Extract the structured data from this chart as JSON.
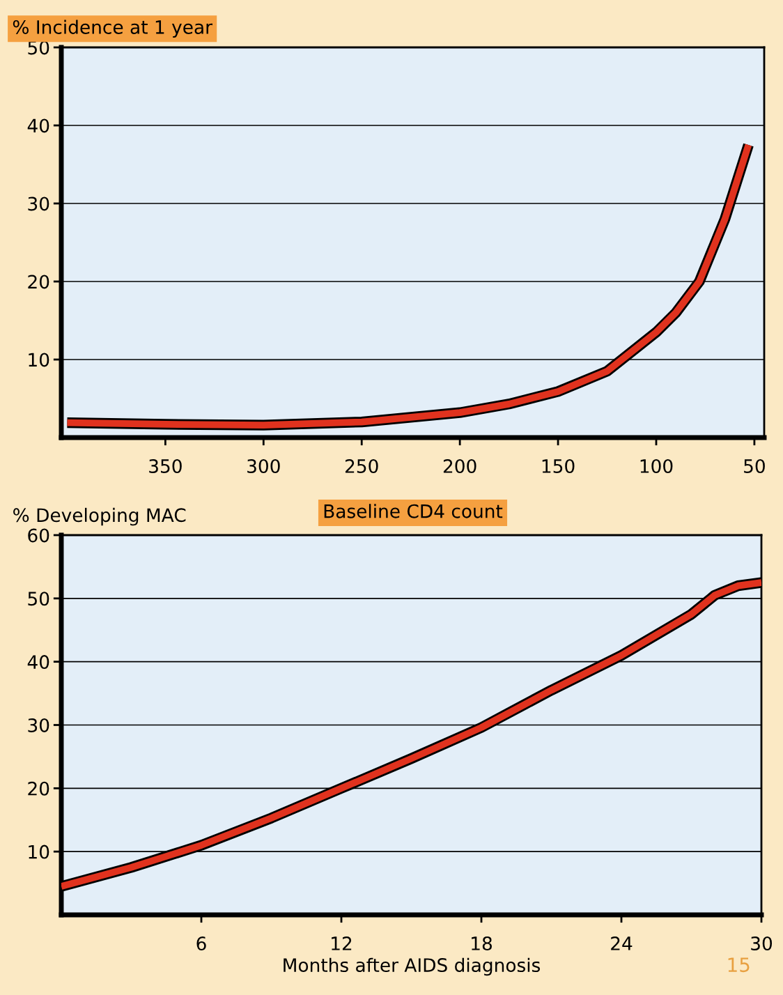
{
  "chart_data": [
    {
      "type": "line",
      "ylabel": "% Incidence at 1 year",
      "xlabel": "Baseline CD4 count",
      "grid": "y",
      "line_style": "solid",
      "x": [
        400,
        350,
        300,
        250,
        200,
        175,
        150,
        125,
        100,
        90,
        78,
        65,
        53
      ],
      "series": [
        {
          "color": "#e0321e",
          "values": [
            1.9,
            1.7,
            1.6,
            2.0,
            3.2,
            4.3,
            5.9,
            8.5,
            13.5,
            16,
            20,
            28,
            37.5
          ]
        }
      ],
      "xlim": [
        403,
        45
      ],
      "ylim": [
        0,
        50
      ],
      "xticks": [
        350,
        300,
        250,
        200,
        150,
        100,
        50
      ],
      "yticks": [
        10,
        20,
        30,
        40,
        50
      ]
    },
    {
      "type": "line",
      "ylabel": "% Developing MAC",
      "xlabel": "Months after AIDS diagnosis",
      "grid": "y",
      "line_style": "solid",
      "x": [
        0,
        3,
        6,
        9,
        12,
        15,
        18,
        21,
        24,
        27,
        28,
        29,
        30
      ],
      "series": [
        {
          "color": "#e0321e",
          "values": [
            4.5,
            7.5,
            11,
            15.3,
            20,
            24.7,
            29.6,
            35.5,
            41,
            47.5,
            50.5,
            52,
            52.5
          ]
        }
      ],
      "xlim": [
        0,
        30
      ],
      "ylim": [
        0,
        60
      ],
      "xticks": [
        6,
        12,
        18,
        24,
        30
      ],
      "yticks": [
        10,
        20,
        30,
        40,
        50,
        60
      ],
      "annotations": [
        "15"
      ]
    }
  ]
}
